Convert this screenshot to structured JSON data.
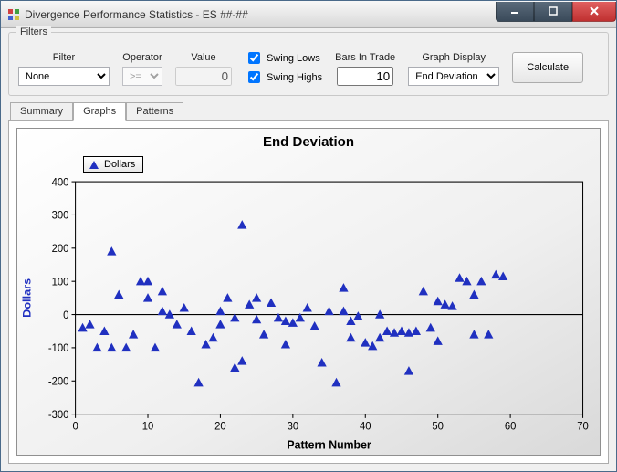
{
  "window": {
    "title": "Divergence Performance Statistics - ES ##-##"
  },
  "filters": {
    "legend": "Filters",
    "filter_label": "Filter",
    "operator_label": "Operator",
    "value_label": "Value",
    "bars_label": "Bars In Trade",
    "graph_label": "Graph Display",
    "filter_value": "None",
    "operator_value": ">=",
    "value_value": "0",
    "swing_lows_label": "Swing Lows",
    "swing_highs_label": "Swing Highs",
    "swing_lows_checked": true,
    "swing_highs_checked": true,
    "bars_value": "10",
    "graph_value": "End Deviation",
    "calculate_label": "Calculate"
  },
  "tabs": {
    "summary": "Summary",
    "graphs": "Graphs",
    "patterns": "Patterns",
    "active": "graphs"
  },
  "chart": {
    "type": "scatter",
    "title": "End Deviation",
    "xlabel": "Pattern Number",
    "ylabel": "Dollars",
    "legend_label": "Dollars",
    "xlim": [
      0,
      70
    ],
    "ylim": [
      -300,
      400
    ],
    "xtick_step": 10,
    "ytick_step": 100,
    "marker": "triangle",
    "marker_color": "#2030c0",
    "axis_color": "#000000",
    "tick_color": "#000000",
    "text_color": "#000000",
    "ylabel_color": "#2030c0",
    "background_gradient": [
      "#ffffff",
      "#d9d9d9"
    ],
    "title_fontsize": 15,
    "label_fontsize": 12,
    "tick_fontsize": 11,
    "points": [
      {
        "x": 1,
        "y": -40
      },
      {
        "x": 2,
        "y": -30
      },
      {
        "x": 3,
        "y": -100
      },
      {
        "x": 4,
        "y": -50
      },
      {
        "x": 5,
        "y": 190
      },
      {
        "x": 5,
        "y": -100
      },
      {
        "x": 6,
        "y": 60
      },
      {
        "x": 7,
        "y": -100
      },
      {
        "x": 8,
        "y": -60
      },
      {
        "x": 9,
        "y": 100
      },
      {
        "x": 10,
        "y": 100
      },
      {
        "x": 10,
        "y": 50
      },
      {
        "x": 11,
        "y": -100
      },
      {
        "x": 12,
        "y": 70
      },
      {
        "x": 12,
        "y": 10
      },
      {
        "x": 13,
        "y": 0
      },
      {
        "x": 14,
        "y": -30
      },
      {
        "x": 15,
        "y": 20
      },
      {
        "x": 16,
        "y": -50
      },
      {
        "x": 17,
        "y": -205
      },
      {
        "x": 18,
        "y": -90
      },
      {
        "x": 19,
        "y": -70
      },
      {
        "x": 20,
        "y": 10
      },
      {
        "x": 20,
        "y": -30
      },
      {
        "x": 21,
        "y": 50
      },
      {
        "x": 22,
        "y": -10
      },
      {
        "x": 22,
        "y": -160
      },
      {
        "x": 23,
        "y": 270
      },
      {
        "x": 23,
        "y": -140
      },
      {
        "x": 24,
        "y": 30
      },
      {
        "x": 25,
        "y": -15
      },
      {
        "x": 25,
        "y": 50
      },
      {
        "x": 26,
        "y": -60
      },
      {
        "x": 27,
        "y": 35
      },
      {
        "x": 28,
        "y": -10
      },
      {
        "x": 29,
        "y": -20
      },
      {
        "x": 29,
        "y": -90
      },
      {
        "x": 30,
        "y": -25
      },
      {
        "x": 31,
        "y": -10
      },
      {
        "x": 32,
        "y": 20
      },
      {
        "x": 33,
        "y": -35
      },
      {
        "x": 34,
        "y": -145
      },
      {
        "x": 35,
        "y": 10
      },
      {
        "x": 36,
        "y": -205
      },
      {
        "x": 37,
        "y": 80
      },
      {
        "x": 37,
        "y": 10
      },
      {
        "x": 38,
        "y": -20
      },
      {
        "x": 38,
        "y": -70
      },
      {
        "x": 39,
        "y": -5
      },
      {
        "x": 40,
        "y": -85
      },
      {
        "x": 41,
        "y": -95
      },
      {
        "x": 42,
        "y": 0
      },
      {
        "x": 42,
        "y": -70
      },
      {
        "x": 43,
        "y": -50
      },
      {
        "x": 44,
        "y": -55
      },
      {
        "x": 45,
        "y": -50
      },
      {
        "x": 46,
        "y": -55
      },
      {
        "x": 46,
        "y": -170
      },
      {
        "x": 47,
        "y": -50
      },
      {
        "x": 48,
        "y": 70
      },
      {
        "x": 49,
        "y": -40
      },
      {
        "x": 50,
        "y": 40
      },
      {
        "x": 50,
        "y": -80
      },
      {
        "x": 51,
        "y": 30
      },
      {
        "x": 52,
        "y": 25
      },
      {
        "x": 53,
        "y": 110
      },
      {
        "x": 54,
        "y": 100
      },
      {
        "x": 55,
        "y": 60
      },
      {
        "x": 55,
        "y": -60
      },
      {
        "x": 56,
        "y": 100
      },
      {
        "x": 57,
        "y": -60
      },
      {
        "x": 58,
        "y": 120
      },
      {
        "x": 59,
        "y": 115
      }
    ]
  }
}
